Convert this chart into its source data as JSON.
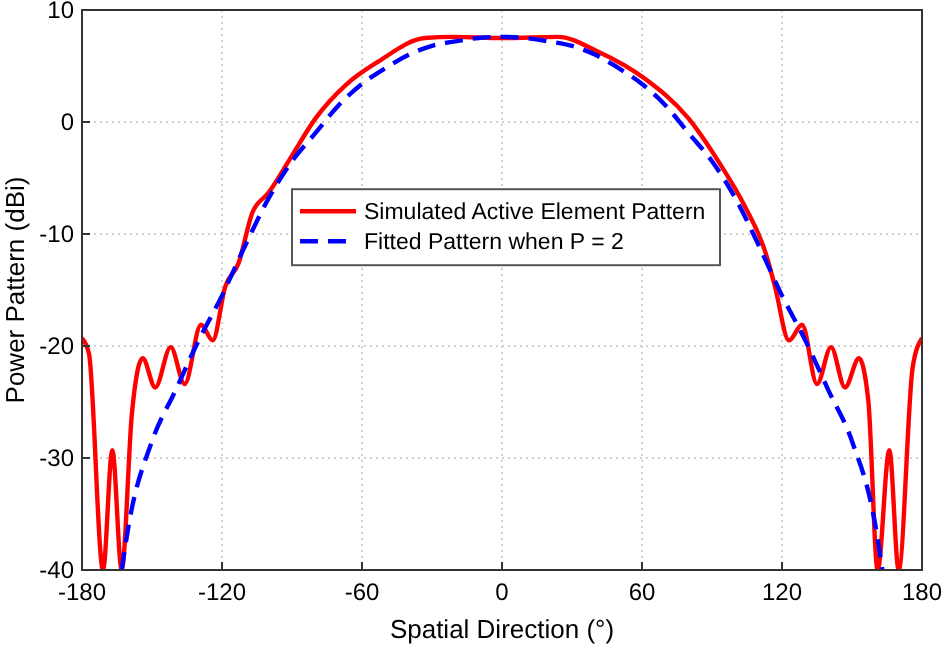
{
  "chart_data": {
    "type": "line",
    "xlabel": "Spatial Direction (°)",
    "ylabel": "Power Pattern (dBi)",
    "xlim": [
      -180,
      180
    ],
    "ylim": [
      -40,
      10
    ],
    "xticks": [
      -180,
      -120,
      -60,
      0,
      60,
      120,
      180
    ],
    "yticks": [
      -40,
      -30,
      -20,
      -10,
      0,
      10
    ],
    "grid": true,
    "legend": "left",
    "series": [
      {
        "name": "Simulated Active Element Pattern",
        "color": "#ff0000",
        "line_style": "solid",
        "x": [
          -180,
          -177,
          -171,
          -167,
          -163,
          -158.6,
          -154,
          -148.6,
          -142,
          -136,
          -129,
          -124,
          -118.6,
          -112.9,
          -107,
          -100,
          -90,
          -80,
          -67,
          -53,
          -33,
          -21,
          0,
          24,
          41,
          61,
          80,
          93,
          104,
          113,
          117,
          123,
          128.6,
          135,
          141,
          147,
          153,
          157,
          161,
          166,
          170,
          176,
          180
        ],
        "values": [
          -19.3,
          -20.7,
          -40,
          -29.3,
          -40,
          -26,
          -21.1,
          -23.7,
          -20.1,
          -23.4,
          -18.1,
          -19.5,
          -14.7,
          -12.6,
          -8.1,
          -6.3,
          -3,
          0.3,
          3.3,
          5.4,
          7.5,
          7.6,
          7.5,
          7.6,
          6.3,
          3.9,
          0.3,
          -3.6,
          -7.5,
          -11.7,
          -14.7,
          -19.5,
          -18.1,
          -23.4,
          -20.1,
          -23.7,
          -21.1,
          -24.9,
          -40,
          -29.3,
          -40,
          -21.9,
          -19.3
        ]
      },
      {
        "name": "Fitted Pattern when P = 2",
        "color": "#0000ff",
        "line_style": "dashed",
        "x": [
          -163,
          -160,
          -150,
          -140,
          -130,
          -120,
          -110,
          -100,
          -90,
          -80,
          -70,
          -60,
          -50,
          -40,
          -30,
          -20,
          -10,
          0,
          10,
          20,
          30,
          40,
          50,
          60,
          70,
          80,
          90,
          100,
          110,
          120,
          130,
          140,
          150,
          160,
          163
        ],
        "values": [
          -40,
          -36,
          -28.5,
          -24,
          -19.5,
          -15.5,
          -11,
          -6.8,
          -3.5,
          -1,
          1.5,
          3.4,
          4.8,
          6,
          6.8,
          7.2,
          7.5,
          7.6,
          7.5,
          7.2,
          6.8,
          6,
          4.8,
          3.4,
          1.5,
          -1,
          -3.5,
          -6.8,
          -11,
          -15.5,
          -19.5,
          -24,
          -28.5,
          -36,
          -40
        ]
      }
    ]
  }
}
